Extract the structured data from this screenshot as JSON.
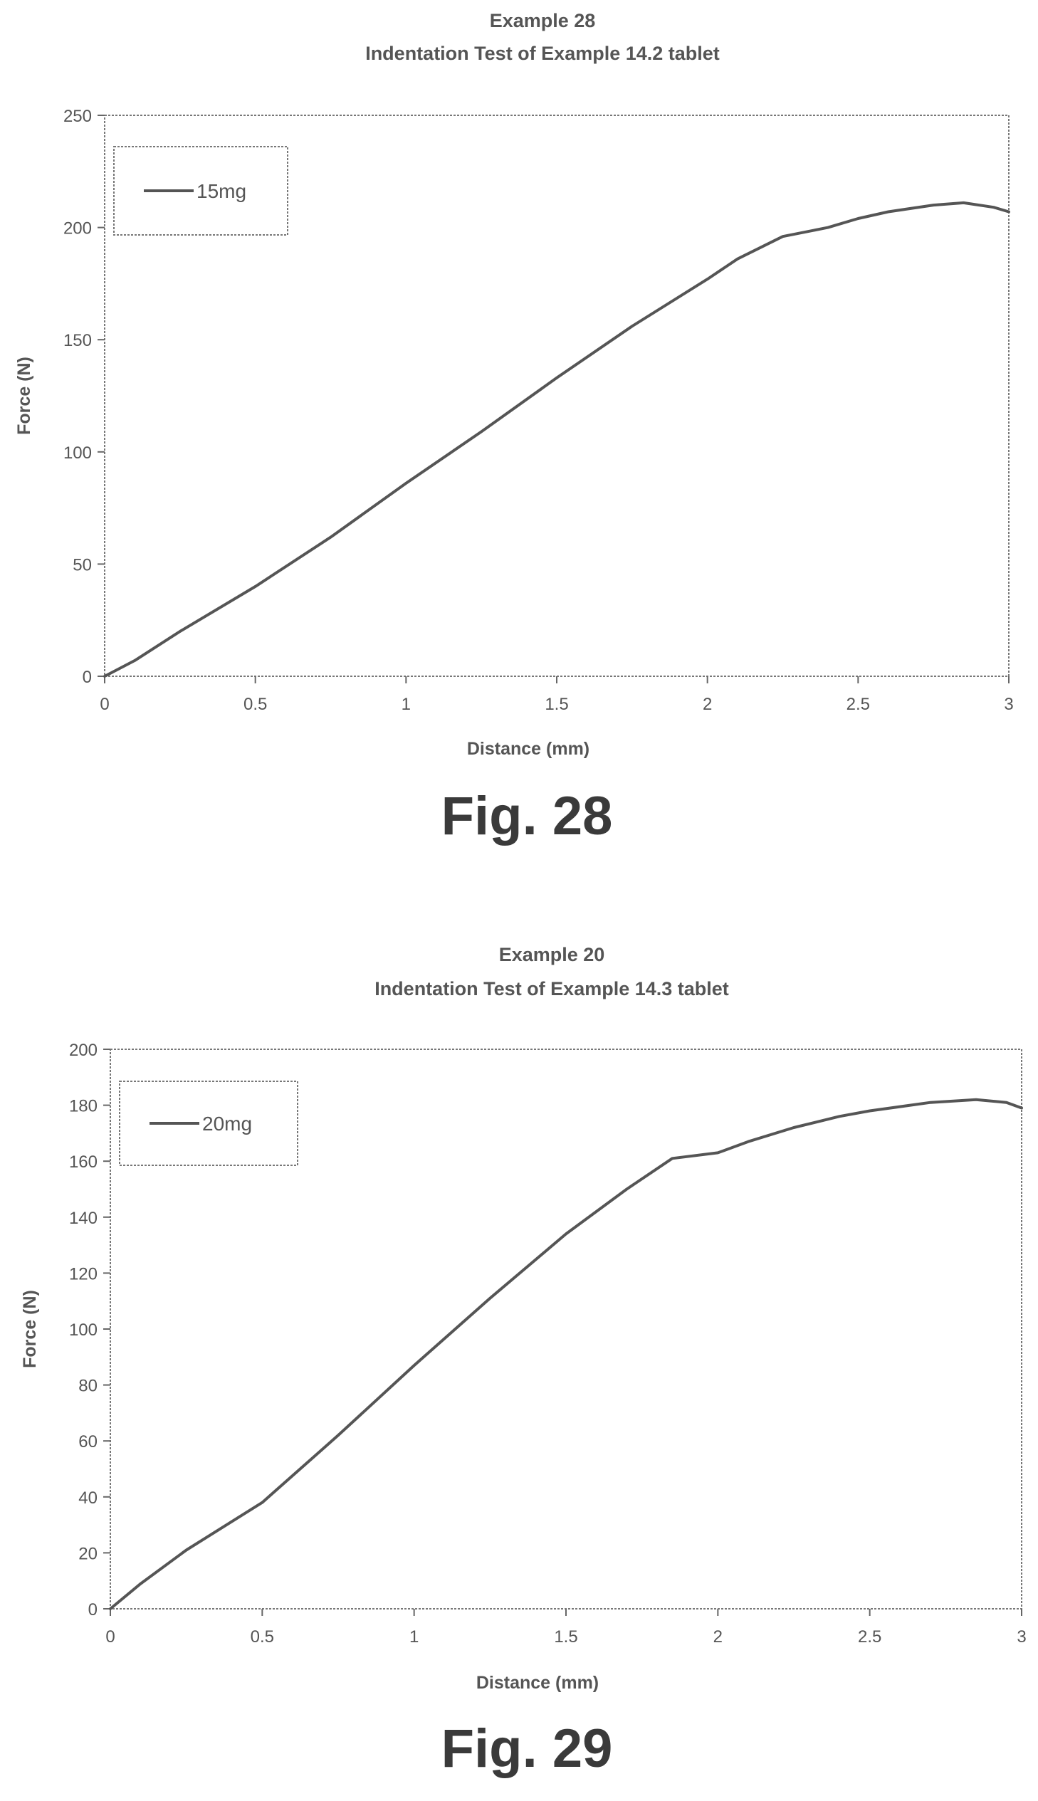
{
  "chart_data": [
    {
      "type": "line",
      "title": "Example 28",
      "subtitle": "Indentation Test of Example 14.2 tablet",
      "xlabel": "Distance (mm)",
      "ylabel": "Force (N)",
      "xlim": [
        0,
        3
      ],
      "ylim": [
        0,
        250
      ],
      "xticks": [
        0,
        0.5,
        1,
        1.5,
        2,
        2.5,
        3
      ],
      "xtick_labels": [
        "0",
        "0.5",
        "1",
        "1.5",
        "2",
        "2.5",
        "3"
      ],
      "yticks": [
        0,
        50,
        100,
        150,
        200,
        250
      ],
      "ytick_labels": [
        "0",
        "50",
        "100",
        "150",
        "200",
        "250"
      ],
      "grid": false,
      "legend_position": "top-left",
      "line_color": "#555555",
      "series": [
        {
          "name": "15mg",
          "x": [
            0,
            0.1,
            0.25,
            0.5,
            0.75,
            1.0,
            1.25,
            1.5,
            1.75,
            2.0,
            2.1,
            2.25,
            2.4,
            2.5,
            2.6,
            2.75,
            2.85,
            2.95,
            3.0
          ],
          "y": [
            0,
            7,
            20,
            40,
            62,
            86,
            109,
            133,
            156,
            177,
            186,
            196,
            200,
            204,
            207,
            210,
            211,
            209,
            207
          ]
        }
      ],
      "figure_label": "Fig. 28"
    },
    {
      "type": "line",
      "title": "Example 20",
      "subtitle": "Indentation Test of Example 14.3 tablet",
      "xlabel": "Distance (mm)",
      "ylabel": "Force (N)",
      "xlim": [
        0,
        3
      ],
      "ylim": [
        0,
        200
      ],
      "xticks": [
        0,
        0.5,
        1,
        1.5,
        2,
        2.5,
        3
      ],
      "xtick_labels": [
        "0",
        "0.5",
        "1",
        "1.5",
        "2",
        "2.5",
        "3"
      ],
      "yticks": [
        0,
        20,
        40,
        60,
        80,
        100,
        120,
        140,
        160,
        180,
        200
      ],
      "ytick_labels": [
        "0",
        "20",
        "40",
        "60",
        "80",
        "100",
        "120",
        "140",
        "160",
        "180",
        "200"
      ],
      "grid": false,
      "legend_position": "top-left",
      "line_color": "#555555",
      "series": [
        {
          "name": "20mg",
          "x": [
            0,
            0.1,
            0.25,
            0.5,
            0.75,
            1.0,
            1.25,
            1.5,
            1.7,
            1.85,
            2.0,
            2.1,
            2.25,
            2.4,
            2.5,
            2.7,
            2.85,
            2.95,
            3.0
          ],
          "y": [
            0,
            9,
            21,
            38,
            62,
            87,
            111,
            134,
            150,
            161,
            163,
            167,
            172,
            176,
            178,
            181,
            182,
            181,
            179
          ]
        }
      ],
      "figure_label": "Fig. 29"
    }
  ]
}
